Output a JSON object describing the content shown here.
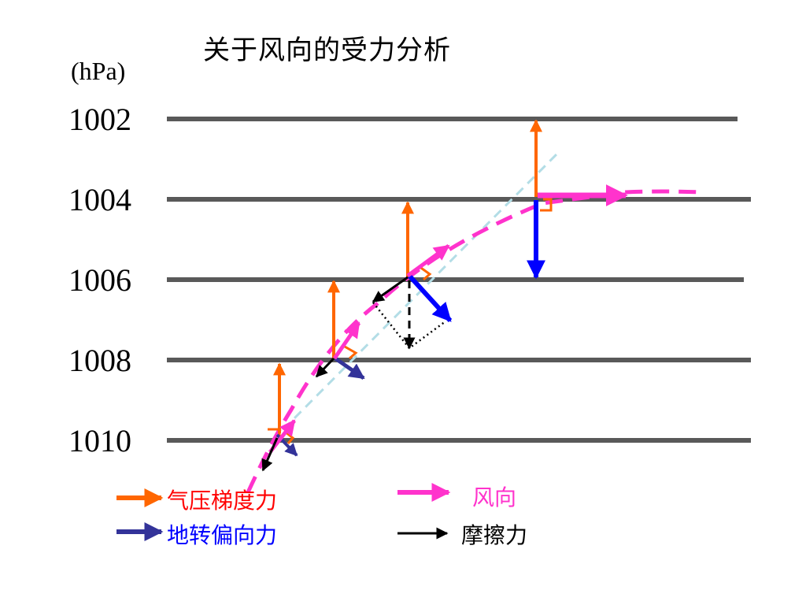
{
  "title": "关于风向的受力分析",
  "unit_label": "(hPa)",
  "isobars": [
    {
      "label": "1002"
    },
    {
      "label": "1004"
    },
    {
      "label": "1006"
    },
    {
      "label": "1008"
    },
    {
      "label": "1010"
    }
  ],
  "legend": {
    "pressure_gradient_force": {
      "label": "气压梯度力",
      "color": "#ff6600"
    },
    "wind_direction": {
      "label": "风向",
      "color": "#ff33cc"
    },
    "coriolis_force": {
      "label": "地转偏向力",
      "color": "#333399"
    },
    "friction": {
      "label": "摩擦力",
      "color": "#000000"
    }
  },
  "colors": {
    "isobar": "#595959",
    "pressure_gradient": "#ff6600",
    "wind": "#ff33cc",
    "coriolis": "#333399",
    "coriolis_high": "#0000ff",
    "friction": "#000000",
    "tangent": "#b3dde6",
    "legend_red_text": "#ff0000",
    "legend_pink_text": "#ff33cc",
    "legend_blue_text": "#0000ff"
  }
}
